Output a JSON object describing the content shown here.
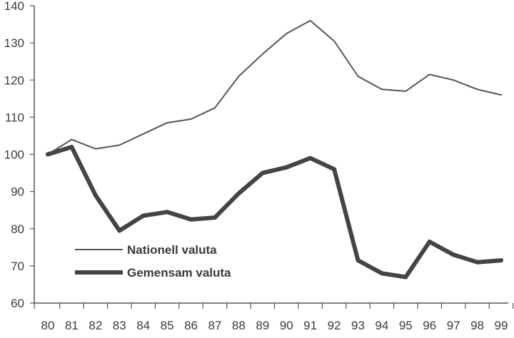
{
  "chart_data": {
    "type": "line",
    "title": "",
    "xlabel": "",
    "ylabel": "",
    "categories": [
      "80",
      "81",
      "82",
      "83",
      "84",
      "85",
      "86",
      "87",
      "88",
      "89",
      "90",
      "91",
      "92",
      "93",
      "94",
      "95",
      "96",
      "97",
      "98",
      "99"
    ],
    "ylim": [
      60,
      140
    ],
    "yticks": [
      "60",
      "70",
      "80",
      "90",
      "100",
      "110",
      "120",
      "130",
      "140"
    ],
    "grid": false,
    "legend_position": "bottom-left",
    "series": [
      {
        "name": "Nationell valuta",
        "style": "thin",
        "color": "#555555",
        "values": [
          100,
          104,
          101.5,
          102.5,
          105.5,
          108.5,
          109.5,
          112.5,
          121,
          127,
          132.5,
          136,
          130.5,
          121,
          117.5,
          117,
          121.5,
          120,
          117.5,
          116
        ]
      },
      {
        "name": "Gemensam valuta",
        "style": "thick",
        "color": "#444444",
        "values": [
          100,
          102,
          89,
          79.5,
          83.5,
          84.5,
          82.5,
          83,
          89.5,
          95,
          96.5,
          99,
          96,
          71.5,
          68,
          67,
          76.5,
          73,
          71,
          71.5
        ]
      }
    ]
  }
}
